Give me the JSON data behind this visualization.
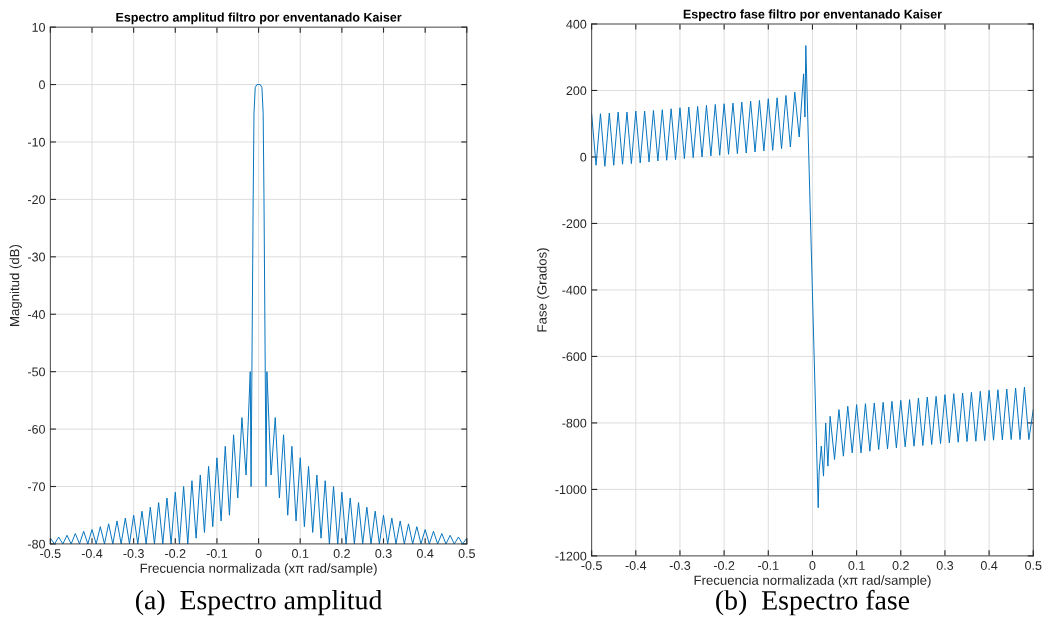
{
  "chart_data": [
    {
      "type": "line",
      "title": "Espectro amplitud filtro por enventanado Kaiser",
      "xlabel": "Frecuencia normalizada (xπ rad/sample)",
      "ylabel": "Magnitud (dB)",
      "annotations": [
        "(a)  Espectro amplitud"
      ],
      "xlim": [
        -0.5,
        0.5
      ],
      "xticks": [
        -0.5,
        -0.4,
        -0.3,
        -0.2,
        -0.1,
        0,
        0.1,
        0.2,
        0.3,
        0.4,
        0.5
      ],
      "ylim": [
        -80,
        10
      ],
      "yticks": [
        -80,
        -70,
        -60,
        -50,
        -40,
        -30,
        -20,
        -10,
        0,
        10
      ],
      "grid": true,
      "legend": false,
      "series": [
        {
          "color": "#0072bd",
          "x": [
            -0.5,
            -0.49,
            -0.48,
            -0.47,
            -0.46,
            -0.45,
            -0.44,
            -0.43,
            -0.42,
            -0.41,
            -0.4,
            -0.39,
            -0.38,
            -0.37,
            -0.36,
            -0.35,
            -0.34,
            -0.33,
            -0.32,
            -0.31,
            -0.3,
            -0.29,
            -0.28,
            -0.27,
            -0.26,
            -0.25,
            -0.24,
            -0.23,
            -0.22,
            -0.21,
            -0.2,
            -0.19,
            -0.18,
            -0.17,
            -0.16,
            -0.15,
            -0.14,
            -0.13,
            -0.12,
            -0.11,
            -0.1,
            -0.09,
            -0.08,
            -0.07,
            -0.06,
            -0.05,
            -0.04,
            -0.03,
            -0.02,
            -0.018,
            -0.016,
            -0.013,
            -0.011,
            -0.008,
            -0.004,
            0,
            0.004,
            0.008,
            0.011,
            0.013,
            0.016,
            0.018,
            0.02,
            0.03,
            0.04,
            0.05,
            0.06,
            0.07,
            0.08,
            0.09,
            0.1,
            0.11,
            0.12,
            0.13,
            0.14,
            0.15,
            0.16,
            0.17,
            0.18,
            0.19,
            0.2,
            0.21,
            0.22,
            0.23,
            0.24,
            0.25,
            0.26,
            0.27,
            0.28,
            0.29,
            0.3,
            0.31,
            0.32,
            0.33,
            0.34,
            0.35,
            0.36,
            0.37,
            0.38,
            0.39,
            0.4,
            0.41,
            0.42,
            0.43,
            0.44,
            0.45,
            0.46,
            0.47,
            0.48,
            0.49,
            0.5
          ],
          "values": [
            -79,
            -80,
            -78.8,
            -80,
            -78.5,
            -80,
            -78.2,
            -80,
            -77.8,
            -80,
            -77.5,
            -80,
            -77,
            -80,
            -76.5,
            -80,
            -76,
            -80,
            -75.5,
            -80,
            -75,
            -80,
            -74.3,
            -80,
            -73.6,
            -80,
            -72.8,
            -80,
            -72,
            -80,
            -71,
            -80,
            -70,
            -80,
            -69,
            -79,
            -68,
            -78,
            -66.5,
            -77,
            -65,
            -76,
            -63,
            -75,
            -61,
            -72,
            -58,
            -68,
            -50,
            -70,
            -50,
            -20,
            -5,
            -0.5,
            0,
            0,
            0,
            -0.5,
            -5,
            -20,
            -50,
            -70,
            -50,
            -68,
            -58,
            -72,
            -61,
            -75,
            -63,
            -76,
            -65,
            -77,
            -66.5,
            -78,
            -68,
            -79,
            -69,
            -80,
            -70,
            -80,
            -71,
            -80,
            -72,
            -80,
            -72.8,
            -80,
            -73.6,
            -80,
            -74.3,
            -80,
            -75,
            -80,
            -75.5,
            -80,
            -76,
            -80,
            -76.5,
            -80,
            -77,
            -80,
            -77.5,
            -80,
            -77.8,
            -80,
            -78.2,
            -80,
            -78.5,
            -80,
            -78.8,
            -80,
            -79
          ]
        }
      ]
    },
    {
      "type": "line",
      "title": "Espectro fase filtro por enventanado Kaiser",
      "xlabel": "Frecuencia normalizada (xπ rad/sample)",
      "ylabel": "Fase (Grados)",
      "annotations": [
        "(b)  Espectro fase"
      ],
      "xlim": [
        -0.5,
        0.5
      ],
      "xticks": [
        -0.5,
        -0.4,
        -0.3,
        -0.2,
        -0.1,
        0,
        0.1,
        0.2,
        0.3,
        0.4,
        0.5
      ],
      "ylim": [
        -1200,
        400
      ],
      "yticks": [
        -1200,
        -1000,
        -800,
        -600,
        -400,
        -200,
        0,
        200,
        400
      ],
      "grid": true,
      "legend": false,
      "series": [
        {
          "color": "#0072bd",
          "x": [
            -0.5,
            -0.49,
            -0.48,
            -0.47,
            -0.46,
            -0.45,
            -0.44,
            -0.43,
            -0.42,
            -0.41,
            -0.4,
            -0.39,
            -0.38,
            -0.37,
            -0.36,
            -0.35,
            -0.34,
            -0.33,
            -0.32,
            -0.31,
            -0.3,
            -0.29,
            -0.28,
            -0.27,
            -0.26,
            -0.25,
            -0.24,
            -0.23,
            -0.22,
            -0.21,
            -0.2,
            -0.19,
            -0.18,
            -0.17,
            -0.16,
            -0.15,
            -0.14,
            -0.13,
            -0.12,
            -0.11,
            -0.1,
            -0.09,
            -0.08,
            -0.07,
            -0.06,
            -0.05,
            -0.04,
            -0.03,
            -0.02,
            -0.017,
            -0.015,
            0.013,
            0.015,
            0.02,
            0.025,
            0.03,
            0.035,
            0.04,
            0.05,
            0.06,
            0.07,
            0.08,
            0.09,
            0.1,
            0.11,
            0.12,
            0.13,
            0.14,
            0.15,
            0.16,
            0.17,
            0.18,
            0.19,
            0.2,
            0.21,
            0.22,
            0.23,
            0.24,
            0.25,
            0.26,
            0.27,
            0.28,
            0.29,
            0.3,
            0.31,
            0.32,
            0.33,
            0.34,
            0.35,
            0.36,
            0.37,
            0.38,
            0.39,
            0.4,
            0.41,
            0.42,
            0.43,
            0.44,
            0.45,
            0.46,
            0.47,
            0.48,
            0.49,
            0.5
          ],
          "values": [
            130,
            -25,
            130,
            -28,
            132,
            -25,
            135,
            -22,
            135,
            -20,
            138,
            -18,
            138,
            -15,
            140,
            -12,
            142,
            -10,
            145,
            -8,
            148,
            -5,
            150,
            -2,
            152,
            0,
            155,
            3,
            158,
            5,
            160,
            8,
            162,
            10,
            165,
            12,
            168,
            15,
            170,
            18,
            175,
            20,
            178,
            25,
            185,
            30,
            195,
            60,
            250,
            120,
            335,
            -1055,
            -950,
            -870,
            -960,
            -800,
            -930,
            -780,
            -910,
            -760,
            -900,
            -750,
            -890,
            -745,
            -890,
            -742,
            -885,
            -740,
            -880,
            -738,
            -878,
            -735,
            -875,
            -732,
            -872,
            -730,
            -870,
            -725,
            -868,
            -722,
            -865,
            -720,
            -862,
            -715,
            -860,
            -712,
            -858,
            -710,
            -856,
            -708,
            -855,
            -705,
            -853,
            -702,
            -852,
            -700,
            -851,
            -698,
            -850,
            -695,
            -850,
            -692,
            -850,
            -760
          ]
        }
      ]
    }
  ]
}
